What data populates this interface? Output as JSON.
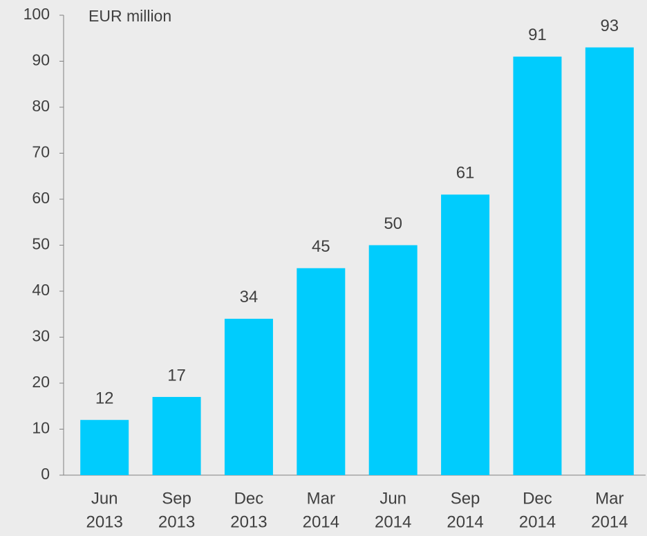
{
  "chart_data": {
    "type": "bar",
    "unit_label": "EUR million",
    "categories": [
      [
        "Jun",
        "2013"
      ],
      [
        "Sep",
        "2013"
      ],
      [
        "Dec",
        "2013"
      ],
      [
        "Mar",
        "2014"
      ],
      [
        "Jun",
        "2014"
      ],
      [
        "Sep",
        "2014"
      ],
      [
        "Dec",
        "2014"
      ],
      [
        "Mar",
        "2014"
      ]
    ],
    "values": [
      12,
      17,
      34,
      45,
      50,
      61,
      91,
      93
    ],
    "color": "#00ccfd",
    "ylim": [
      0,
      100
    ],
    "yticks": [
      0,
      10,
      20,
      30,
      40,
      50,
      60,
      70,
      80,
      90,
      100
    ],
    "grid": false
  }
}
